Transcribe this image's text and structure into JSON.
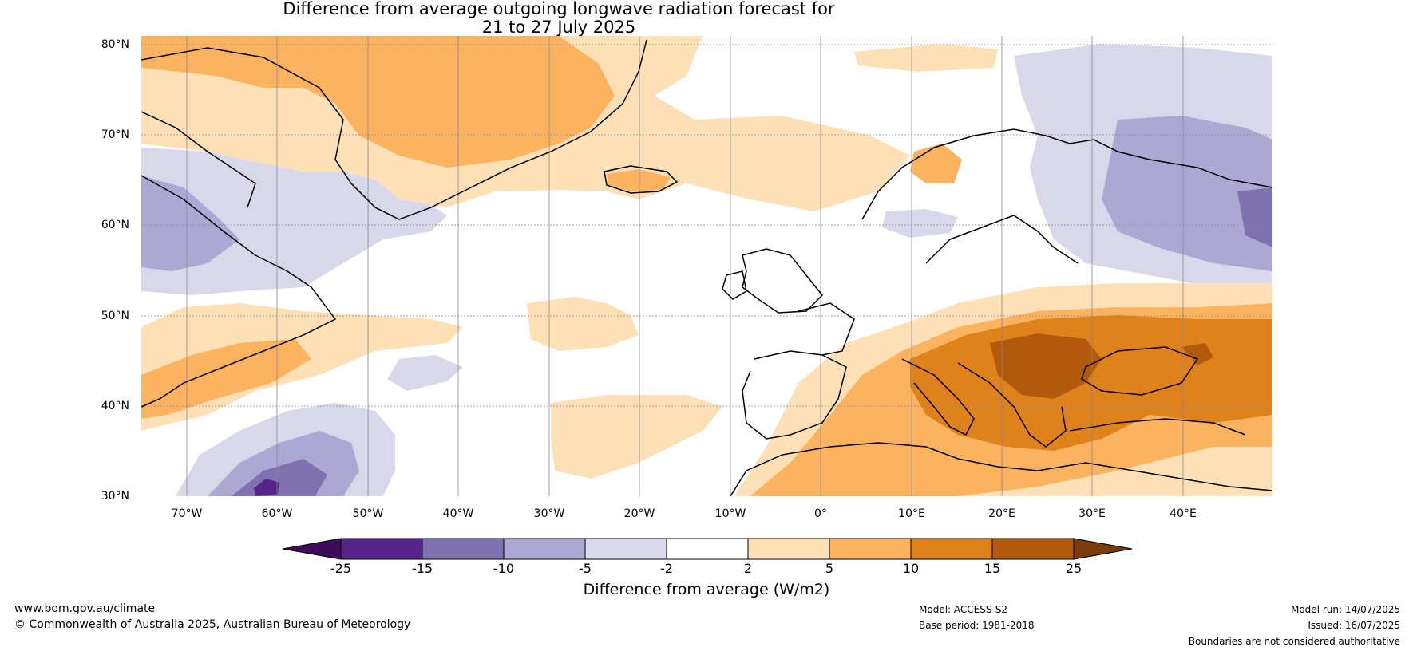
{
  "title": {
    "line1": "Difference from average outgoing longwave radiation forecast for",
    "line2": "21 to 27 July 2025"
  },
  "map": {
    "projection": "equirectangular",
    "lon_range": [
      -75,
      50
    ],
    "lat_range": [
      30,
      81
    ],
    "latitude_labels": [
      "80°N",
      "70°N",
      "60°N",
      "50°N",
      "40°N",
      "30°N"
    ],
    "longitude_labels": [
      "70°W",
      "60°W",
      "50°W",
      "40°W",
      "30°W",
      "20°W",
      "10°W",
      "0°",
      "10°E",
      "20°E",
      "30°E",
      "40°E"
    ],
    "grid": true
  },
  "colorbar": {
    "ticks": [
      "-25",
      "-15",
      "-10",
      "-5",
      "-2",
      "2",
      "5",
      "10",
      "15",
      "25"
    ],
    "colors": [
      "#3f0b5b",
      "#56258c",
      "#7f72b0",
      "#ada8d3",
      "#d8d8ea",
      "#ffffff",
      "#fde0b6",
      "#fbb35f",
      "#e0821c",
      "#b25a0c",
      "#7c3c0a"
    ],
    "label": "Difference from average (W/m2)",
    "extend": "both"
  },
  "footer": {
    "url": "www.bom.gov.au/climate",
    "copyright": "© Commonwealth of Australia 2025, Australian Bureau of Meteorology",
    "model": "Model: ACCESS-S2",
    "base_period": "Base period: 1981-2018",
    "model_run": "Model run: 14/07/2025",
    "issued": "Issued: 16/07/2025",
    "disclaimer": "Boundaries are not considered authoritative"
  }
}
